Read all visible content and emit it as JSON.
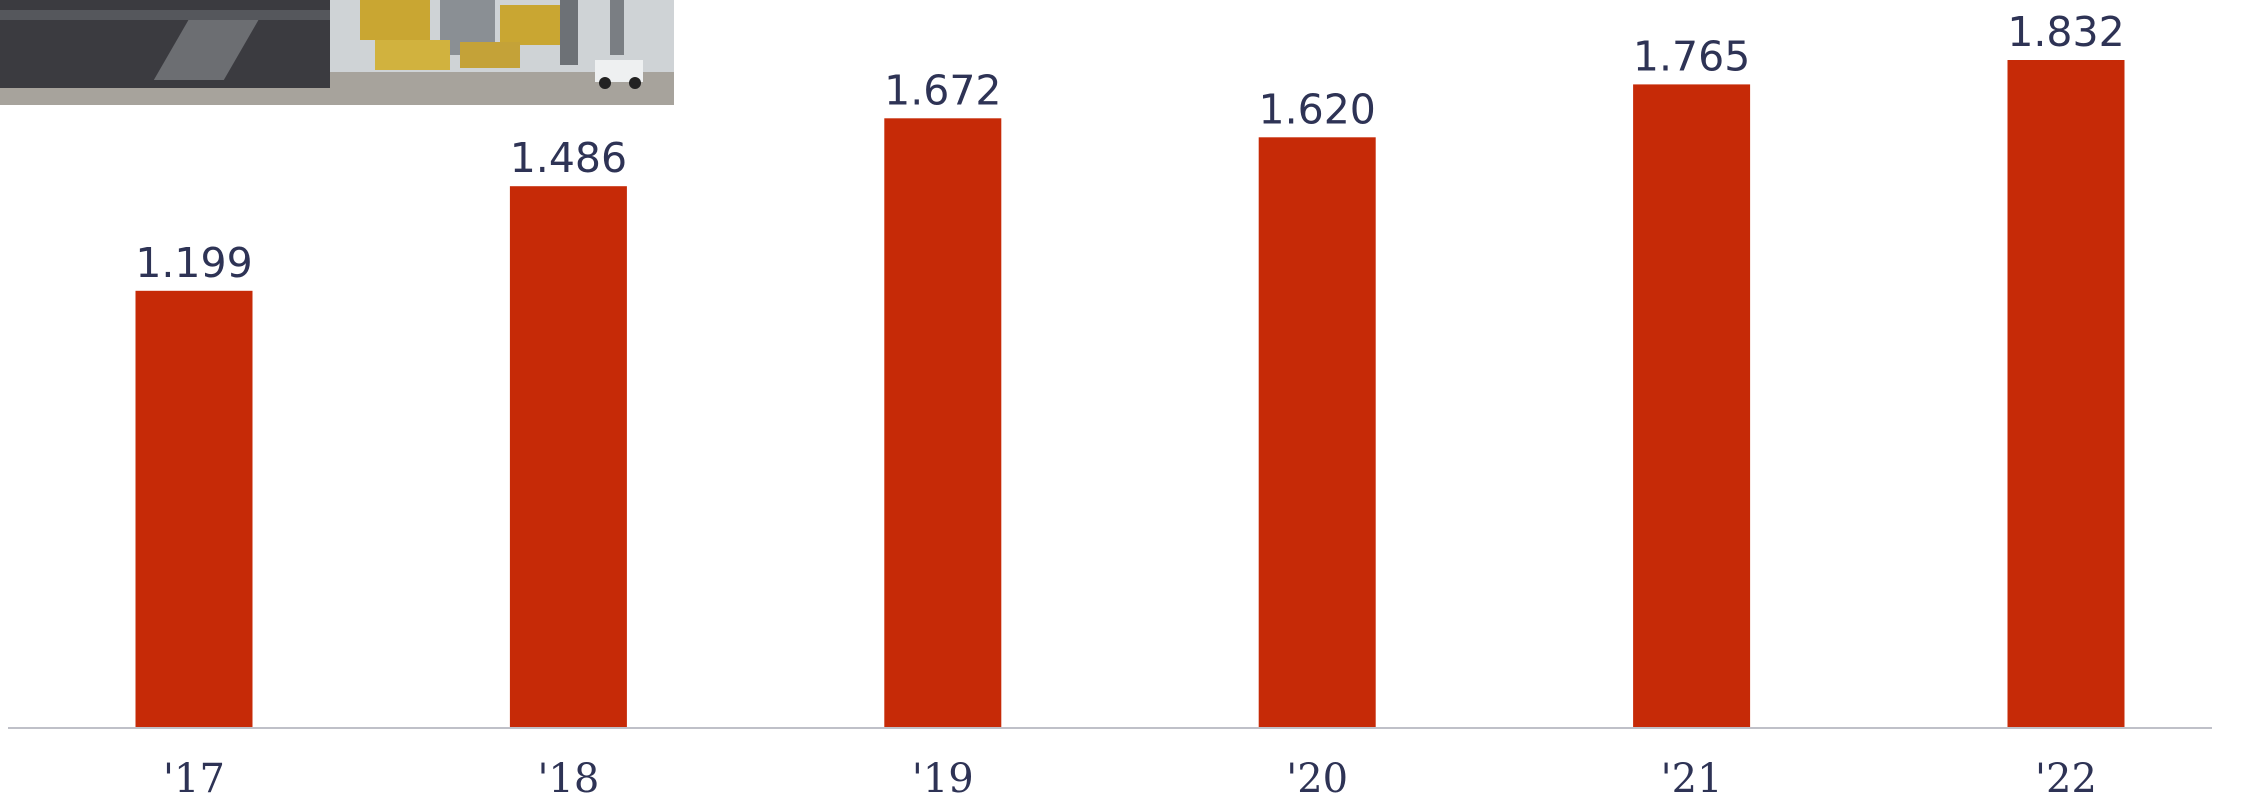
{
  "chart_data": {
    "type": "bar",
    "title": "",
    "xlabel": "",
    "ylabel": "",
    "categories": [
      "'17",
      "'18",
      "'19",
      "'20",
      "'21",
      "'22"
    ],
    "values": [
      1.199,
      1.486,
      1.672,
      1.62,
      1.765,
      1.832
    ],
    "value_labels": [
      "1.199",
      "1.486",
      "1.672",
      "1.620",
      "1.765",
      "1.832"
    ],
    "ylim": [
      0,
      1.832
    ],
    "grid": false,
    "legend": "none",
    "bar_color": "#c62a07",
    "axis_color": "#bfc0c8",
    "label_color": "#2e3355"
  },
  "photo": {
    "subject": "container port with cargo ship, stacked containers and trucks",
    "colors": {
      "sky": "#cfd3d6",
      "ship_hull": "#3b3b40",
      "container_yellow": "#c9a632",
      "container_gray": "#8a8f94",
      "ground": "#a7a39c"
    }
  }
}
